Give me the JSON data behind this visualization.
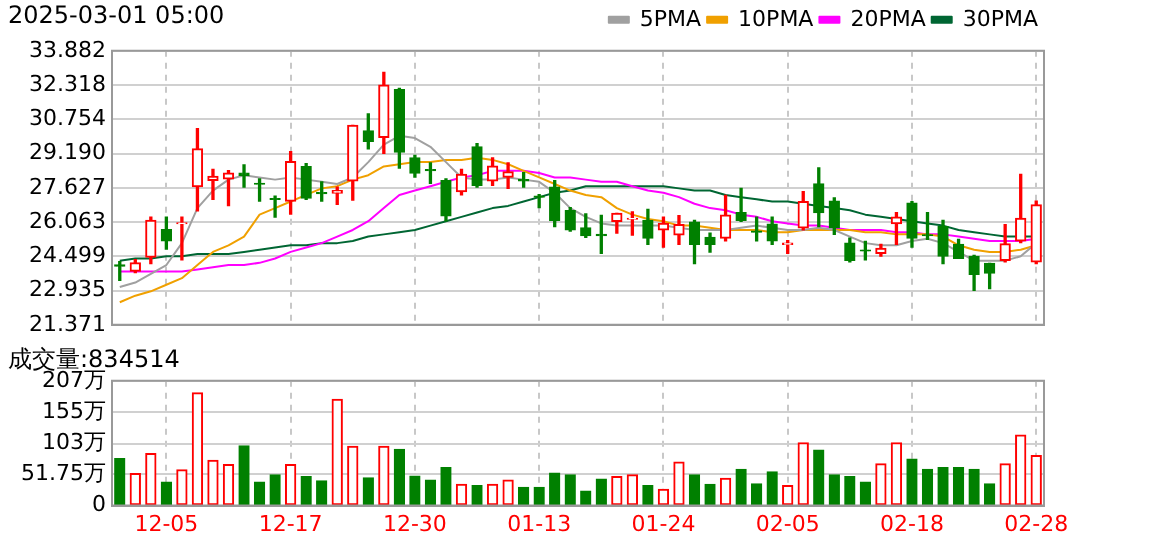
{
  "chart_data": [
    {
      "type": "candlestick",
      "title": "2025-03-01 05:00",
      "categories": [
        null,
        null,
        null,
        null,
        null,
        null,
        null,
        null,
        null,
        null,
        null,
        null,
        null,
        null,
        null,
        null,
        null,
        null,
        null,
        null,
        null,
        null,
        null,
        null,
        null,
        null,
        null,
        null,
        null,
        null,
        null,
        null,
        null,
        null,
        null,
        null,
        null,
        null,
        null,
        null,
        null,
        null,
        null,
        null,
        null,
        null,
        null,
        null,
        null,
        null,
        null,
        null,
        null,
        null,
        null,
        null,
        null,
        null,
        null,
        null
      ],
      "ohlc": [
        [
          24.1,
          24.25,
          23.4,
          24.05
        ],
        [
          23.82,
          24.34,
          23.76,
          24.2
        ],
        [
          24.46,
          26.29,
          24.17,
          26.14
        ],
        [
          25.71,
          26.29,
          24.83,
          25.21
        ],
        [
          25.99,
          26.29,
          24.34,
          26.02
        ],
        [
          27.68,
          30.33,
          26.58,
          29.4
        ],
        [
          27.97,
          28.47,
          27.1,
          28.15
        ],
        [
          28.03,
          28.41,
          26.81,
          28.3
        ],
        [
          28.3,
          28.67,
          27.66,
          28.2
        ],
        [
          27.83,
          28.03,
          27.02,
          27.8
        ],
        [
          27.13,
          27.25,
          26.29,
          27.1
        ],
        [
          27.02,
          29.28,
          26.43,
          28.82
        ],
        [
          28.59,
          28.73,
          27.1,
          27.16
        ],
        [
          27.4,
          27.89,
          27.02,
          27.36
        ],
        [
          27.38,
          27.66,
          26.87,
          27.5
        ],
        [
          27.95,
          30.48,
          27.07,
          30.48
        ],
        [
          30.22,
          31.0,
          29.4,
          29.75
        ],
        [
          29.93,
          32.89,
          29.2,
          32.31
        ],
        [
          32.11,
          32.17,
          28.53,
          29.26
        ],
        [
          28.99,
          29.11,
          28.12,
          28.3
        ],
        [
          28.45,
          28.76,
          27.83,
          28.41
        ],
        [
          27.95,
          28.03,
          26.12,
          26.35
        ],
        [
          27.45,
          28.47,
          27.31,
          28.24
        ],
        [
          29.49,
          29.64,
          27.66,
          27.74
        ],
        [
          27.95,
          28.99,
          27.74,
          28.62
        ],
        [
          28.12,
          28.76,
          27.6,
          28.35
        ],
        [
          28.0,
          28.32,
          27.66,
          27.95
        ],
        [
          27.25,
          27.31,
          26.72,
          27.2
        ],
        [
          27.66,
          27.95,
          25.85,
          26.14
        ],
        [
          26.58,
          26.72,
          25.65,
          25.71
        ],
        [
          25.8,
          26.43,
          25.36,
          25.45
        ],
        [
          25.5,
          26.37,
          24.63,
          25.45
        ],
        [
          26.09,
          26.46,
          25.56,
          26.46
        ],
        [
          26.2,
          26.52,
          25.47,
          26.23
        ],
        [
          26.14,
          26.64,
          25.04,
          25.33
        ],
        [
          25.71,
          26.29,
          24.92,
          26.0
        ],
        [
          25.48,
          26.35,
          25.04,
          25.94
        ],
        [
          26.06,
          26.14,
          24.17,
          25.04
        ],
        [
          25.36,
          25.56,
          24.69,
          25.04
        ],
        [
          25.33,
          27.28,
          25.21,
          26.38
        ],
        [
          26.49,
          27.6,
          26.09,
          26.14
        ],
        [
          25.65,
          26.29,
          25.21,
          25.6
        ],
        [
          25.97,
          26.29,
          25.04,
          25.21
        ],
        [
          25.04,
          25.21,
          24.63,
          25.1
        ],
        [
          25.8,
          27.45,
          25.71,
          26.99
        ],
        [
          27.8,
          28.53,
          25.85,
          26.49
        ],
        [
          27.02,
          27.16,
          25.5,
          25.8
        ],
        [
          25.1,
          25.33,
          24.25,
          24.31
        ],
        [
          24.78,
          25.18,
          24.34,
          24.75
        ],
        [
          24.63,
          25.04,
          24.51,
          24.86
        ],
        [
          25.99,
          26.49,
          25.04,
          26.29
        ],
        [
          26.93,
          26.99,
          24.92,
          25.33
        ],
        [
          25.48,
          26.49,
          25.27,
          25.45
        ],
        [
          25.85,
          26.14,
          24.17,
          24.51
        ],
        [
          25.04,
          25.27,
          24.4,
          24.4
        ],
        [
          24.49,
          24.54,
          22.94,
          23.67
        ],
        [
          24.17,
          24.17,
          23.03,
          23.73
        ],
        [
          24.31,
          25.94,
          24.25,
          25.07
        ],
        [
          25.21,
          28.24,
          25.13,
          26.23
        ],
        [
          24.25,
          27.02,
          24.17,
          26.84
        ]
      ],
      "colors": [
        "#008000",
        "#ff0000",
        "#ff0000",
        "#008000",
        "#ff0000",
        "#ff0000",
        "#ff0000",
        "#ff0000",
        "#008000",
        "#008000",
        "#008000",
        "#ff0000",
        "#008000",
        "#008000",
        "#ff0000",
        "#ff0000",
        "#008000",
        "#ff0000",
        "#008000",
        "#008000",
        "#008000",
        "#008000",
        "#ff0000",
        "#008000",
        "#ff0000",
        "#ff0000",
        "#008000",
        "#008000",
        "#008000",
        "#008000",
        "#008000",
        "#008000",
        "#ff0000",
        "#ff0000",
        "#008000",
        "#ff0000",
        "#ff0000",
        "#008000",
        "#008000",
        "#ff0000",
        "#008000",
        "#008000",
        "#008000",
        "#ff0000",
        "#ff0000",
        "#008000",
        "#008000",
        "#008000",
        "#008000",
        "#ff0000",
        "#ff0000",
        "#008000",
        "#008000",
        "#008000",
        "#008000",
        "#008000",
        "#008000",
        "#ff0000",
        "#ff0000",
        "#ff0000"
      ],
      "series": [
        {
          "name": "5PMA",
          "type": "line",
          "color": "#a0a0a0",
          "values": [
            23.1,
            23.3,
            23.7,
            24.1,
            25.1,
            26.7,
            27.5,
            28.0,
            28.2,
            28.1,
            28.0,
            28.1,
            28.0,
            27.9,
            27.8,
            28.1,
            28.8,
            29.6,
            30.0,
            29.9,
            29.5,
            28.8,
            28.1,
            28.0,
            28.0,
            28.1,
            28.0,
            27.9,
            27.4,
            26.7,
            26.3,
            26.0,
            25.9,
            25.9,
            25.9,
            25.9,
            25.8,
            25.7,
            25.7,
            25.7,
            25.8,
            25.9,
            25.8,
            25.7,
            25.7,
            25.8,
            25.7,
            25.4,
            25.1,
            25.0,
            25.0,
            25.2,
            25.3,
            25.1,
            24.7,
            24.3,
            24.3,
            24.3,
            24.5,
            25.1
          ]
        },
        {
          "name": "10PMA",
          "type": "line",
          "color": "#f0a000",
          "values": [
            22.4,
            22.7,
            22.9,
            23.2,
            23.5,
            24.1,
            24.7,
            25.0,
            25.4,
            26.4,
            26.7,
            27.0,
            27.3,
            27.6,
            27.7,
            28.0,
            28.2,
            28.6,
            28.7,
            28.8,
            28.8,
            28.9,
            28.9,
            29.0,
            28.9,
            28.7,
            28.4,
            28.1,
            27.8,
            27.5,
            27.3,
            27.2,
            26.7,
            26.4,
            26.2,
            26.1,
            25.9,
            25.9,
            25.8,
            25.7,
            25.7,
            25.7,
            25.6,
            25.6,
            25.7,
            25.7,
            25.7,
            25.7,
            25.6,
            25.6,
            25.5,
            25.5,
            25.5,
            25.4,
            25.0,
            24.8,
            24.7,
            24.7,
            24.8,
            25.0
          ]
        },
        {
          "name": "20PMA",
          "type": "line",
          "color": "#ff00ff",
          "values": [
            23.8,
            23.8,
            23.8,
            23.8,
            23.8,
            23.9,
            24.0,
            24.1,
            24.1,
            24.2,
            24.4,
            24.7,
            24.9,
            25.1,
            25.4,
            25.7,
            26.1,
            26.7,
            27.3,
            27.5,
            27.7,
            27.9,
            28.1,
            28.2,
            28.4,
            28.4,
            28.4,
            28.3,
            28.1,
            28.1,
            28.0,
            27.9,
            27.9,
            27.7,
            27.5,
            27.4,
            27.2,
            26.9,
            26.7,
            26.6,
            26.4,
            26.3,
            26.1,
            26.0,
            25.9,
            25.9,
            25.8,
            25.7,
            25.7,
            25.7,
            25.6,
            25.6,
            25.5,
            25.5,
            25.4,
            25.3,
            25.2,
            25.2,
            25.2,
            25.3
          ]
        },
        {
          "name": "30PMA",
          "type": "line",
          "color": "#006633",
          "values": [
            24.3,
            24.4,
            24.4,
            24.5,
            24.5,
            24.6,
            24.6,
            24.6,
            24.7,
            24.8,
            24.9,
            25.0,
            25.0,
            25.1,
            25.1,
            25.2,
            25.4,
            25.5,
            25.6,
            25.7,
            25.9,
            26.1,
            26.3,
            26.5,
            26.7,
            26.8,
            27.0,
            27.2,
            27.4,
            27.5,
            27.7,
            27.7,
            27.7,
            27.7,
            27.7,
            27.7,
            27.6,
            27.5,
            27.5,
            27.3,
            27.2,
            27.1,
            27.0,
            27.0,
            26.9,
            26.8,
            26.7,
            26.6,
            26.4,
            26.3,
            26.2,
            26.1,
            26.0,
            25.9,
            25.7,
            25.6,
            25.5,
            25.4,
            25.4,
            25.4
          ]
        }
      ],
      "ylim": [
        21.371,
        33.882
      ],
      "yticks": [
        33.882,
        32.318,
        30.754,
        {
          "value": 29.19,
          "label": "29.190"
        },
        27.627,
        26.063,
        24.499,
        22.935,
        21.371
      ],
      "grid": true,
      "legend": "top right",
      "marker": "none",
      "tick_labels": "y"
    },
    {
      "type": "bar",
      "title": "成交量:834514",
      "categories": [
        null,
        null,
        null,
        "12-05",
        null,
        null,
        null,
        null,
        null,
        null,
        null,
        "12-17",
        null,
        null,
        null,
        null,
        null,
        null,
        null,
        "12-30",
        null,
        null,
        null,
        null,
        null,
        null,
        null,
        "01-13",
        null,
        null,
        null,
        null,
        null,
        null,
        null,
        "01-24",
        null,
        null,
        null,
        null,
        null,
        null,
        null,
        "02-05",
        null,
        null,
        null,
        null,
        null,
        null,
        null,
        "02-18",
        null,
        null,
        null,
        null,
        null,
        null,
        null,
        "02-28"
      ],
      "values": [
        78,
        53,
        86,
        39,
        59,
        187,
        75,
        68,
        99,
        39,
        51,
        68,
        48,
        41,
        176,
        98,
        46,
        98,
        93,
        49,
        42,
        63,
        35,
        33,
        35,
        42,
        30,
        30,
        54,
        51,
        24,
        44,
        48,
        51,
        33,
        27,
        72,
        51,
        35,
        45,
        60,
        36,
        56,
        33,
        104,
        92,
        51,
        48,
        39,
        69,
        104,
        77,
        60,
        63,
        63,
        60,
        36,
        69,
        117,
        83
      ],
      "colors": [
        "#008000",
        "#ff0000",
        "#ff0000",
        "#008000",
        "#ff0000",
        "#ff0000",
        "#ff0000",
        "#ff0000",
        "#008000",
        "#008000",
        "#008000",
        "#ff0000",
        "#008000",
        "#008000",
        "#ff0000",
        "#ff0000",
        "#008000",
        "#ff0000",
        "#008000",
        "#008000",
        "#008000",
        "#008000",
        "#ff0000",
        "#008000",
        "#ff0000",
        "#ff0000",
        "#008000",
        "#008000",
        "#008000",
        "#008000",
        "#008000",
        "#008000",
        "#ff0000",
        "#ff0000",
        "#008000",
        "#ff0000",
        "#ff0000",
        "#008000",
        "#008000",
        "#ff0000",
        "#008000",
        "#008000",
        "#008000",
        "#ff0000",
        "#ff0000",
        "#008000",
        "#008000",
        "#008000",
        "#008000",
        "#ff0000",
        "#ff0000",
        "#008000",
        "#008000",
        "#008000",
        "#008000",
        "#008000",
        "#008000",
        "#ff0000",
        "#ff0000",
        "#ff0000"
      ],
      "ylim": [
        0,
        207
      ],
      "yticks": [
        0,
        {
          "value": 51.75,
          "label": "51.75万"
        },
        {
          "value": 103,
          "label": "103万"
        },
        {
          "value": 155,
          "label": "155万"
        },
        {
          "value": 207,
          "label": "207万"
        }
      ],
      "grid": true
    }
  ]
}
